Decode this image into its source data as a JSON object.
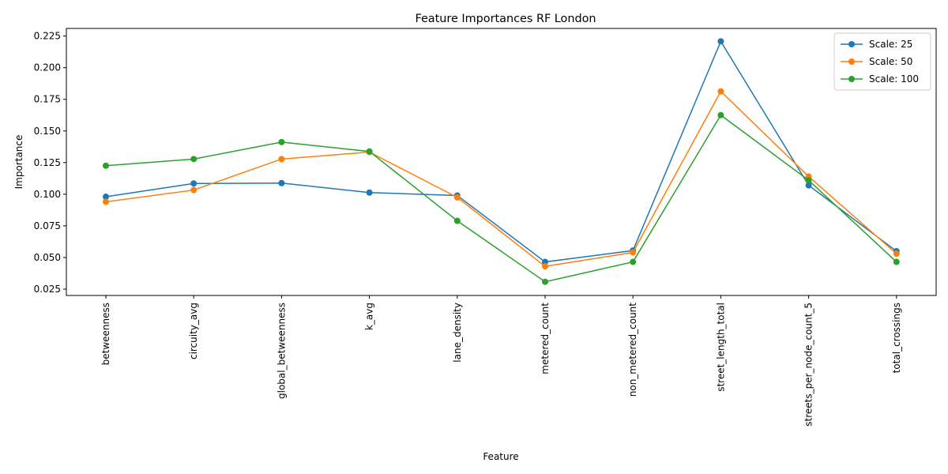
{
  "chart_data": {
    "type": "line",
    "title": "Feature Importances RF London",
    "xlabel": "Feature",
    "ylabel": "Importance",
    "categories": [
      "betweenness",
      "circuity_avg",
      "global_betweenness",
      "k_avg",
      "lane_density",
      "metered_count",
      "non_metered_count",
      "street_length_total",
      "streets_per_node_count_5",
      "total_crossings"
    ],
    "ylim": [
      0.02,
      0.231
    ],
    "yticks": [
      "0.025",
      "0.050",
      "0.075",
      "0.100",
      "0.125",
      "0.150",
      "0.175",
      "0.200",
      "0.225"
    ],
    "grid": false,
    "legend_position": "top-right",
    "series": [
      {
        "name": "Scale: 25",
        "color": "#1f77b4",
        "values": [
          0.098,
          0.1085,
          0.1088,
          0.1013,
          0.099,
          0.0465,
          0.0555,
          0.2208,
          0.107,
          0.055
        ]
      },
      {
        "name": "Scale: 50",
        "color": "#ff7f0e",
        "values": [
          0.094,
          0.1033,
          0.1278,
          0.1333,
          0.0975,
          0.043,
          0.054,
          0.1813,
          0.114,
          0.053
        ]
      },
      {
        "name": "Scale: 100",
        "color": "#2ca02c",
        "values": [
          0.1225,
          0.1278,
          0.1412,
          0.1338,
          0.079,
          0.0308,
          0.0465,
          0.1625,
          0.111,
          0.0465
        ]
      }
    ]
  }
}
